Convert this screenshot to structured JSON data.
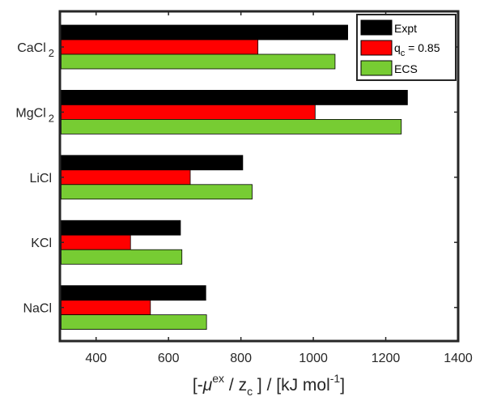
{
  "chart_data": {
    "type": "bar",
    "orientation": "horizontal",
    "categories": [
      {
        "base": "CaCl",
        "sub": "2"
      },
      {
        "base": "MgCl",
        "sub": "2"
      },
      {
        "base": "LiCl",
        "sub": ""
      },
      {
        "base": "KCl",
        "sub": ""
      },
      {
        "base": "NaCl",
        "sub": ""
      }
    ],
    "series": [
      {
        "name": "Expt",
        "color": "#000000",
        "values": [
          1095,
          1260,
          805,
          633,
          703
        ]
      },
      {
        "name": "q_c = 0.85",
        "color": "#ff0000",
        "values": [
          847,
          1005,
          660,
          495,
          550
        ]
      },
      {
        "name": "ECS",
        "color": "#77cc33",
        "values": [
          1060,
          1243,
          831,
          637,
          705
        ]
      }
    ],
    "legend": [
      {
        "label": "Expt",
        "sub": ""
      },
      {
        "label": "q",
        "sub": "c",
        "suffix": " = 0.85"
      },
      {
        "label": "ECS",
        "sub": ""
      }
    ],
    "legend_position": "top-right",
    "xlim": [
      300,
      1400
    ],
    "xticks": [
      400,
      600,
      800,
      1000,
      1200,
      1400
    ],
    "xlabel": {
      "open": "[-",
      "mu": "μ",
      "mu_sup": "ex",
      "mid": " / z",
      "z_sub": "c",
      "close": " ] / [kJ mol",
      "exp": "-1",
      "end": "]"
    },
    "grid": false
  }
}
